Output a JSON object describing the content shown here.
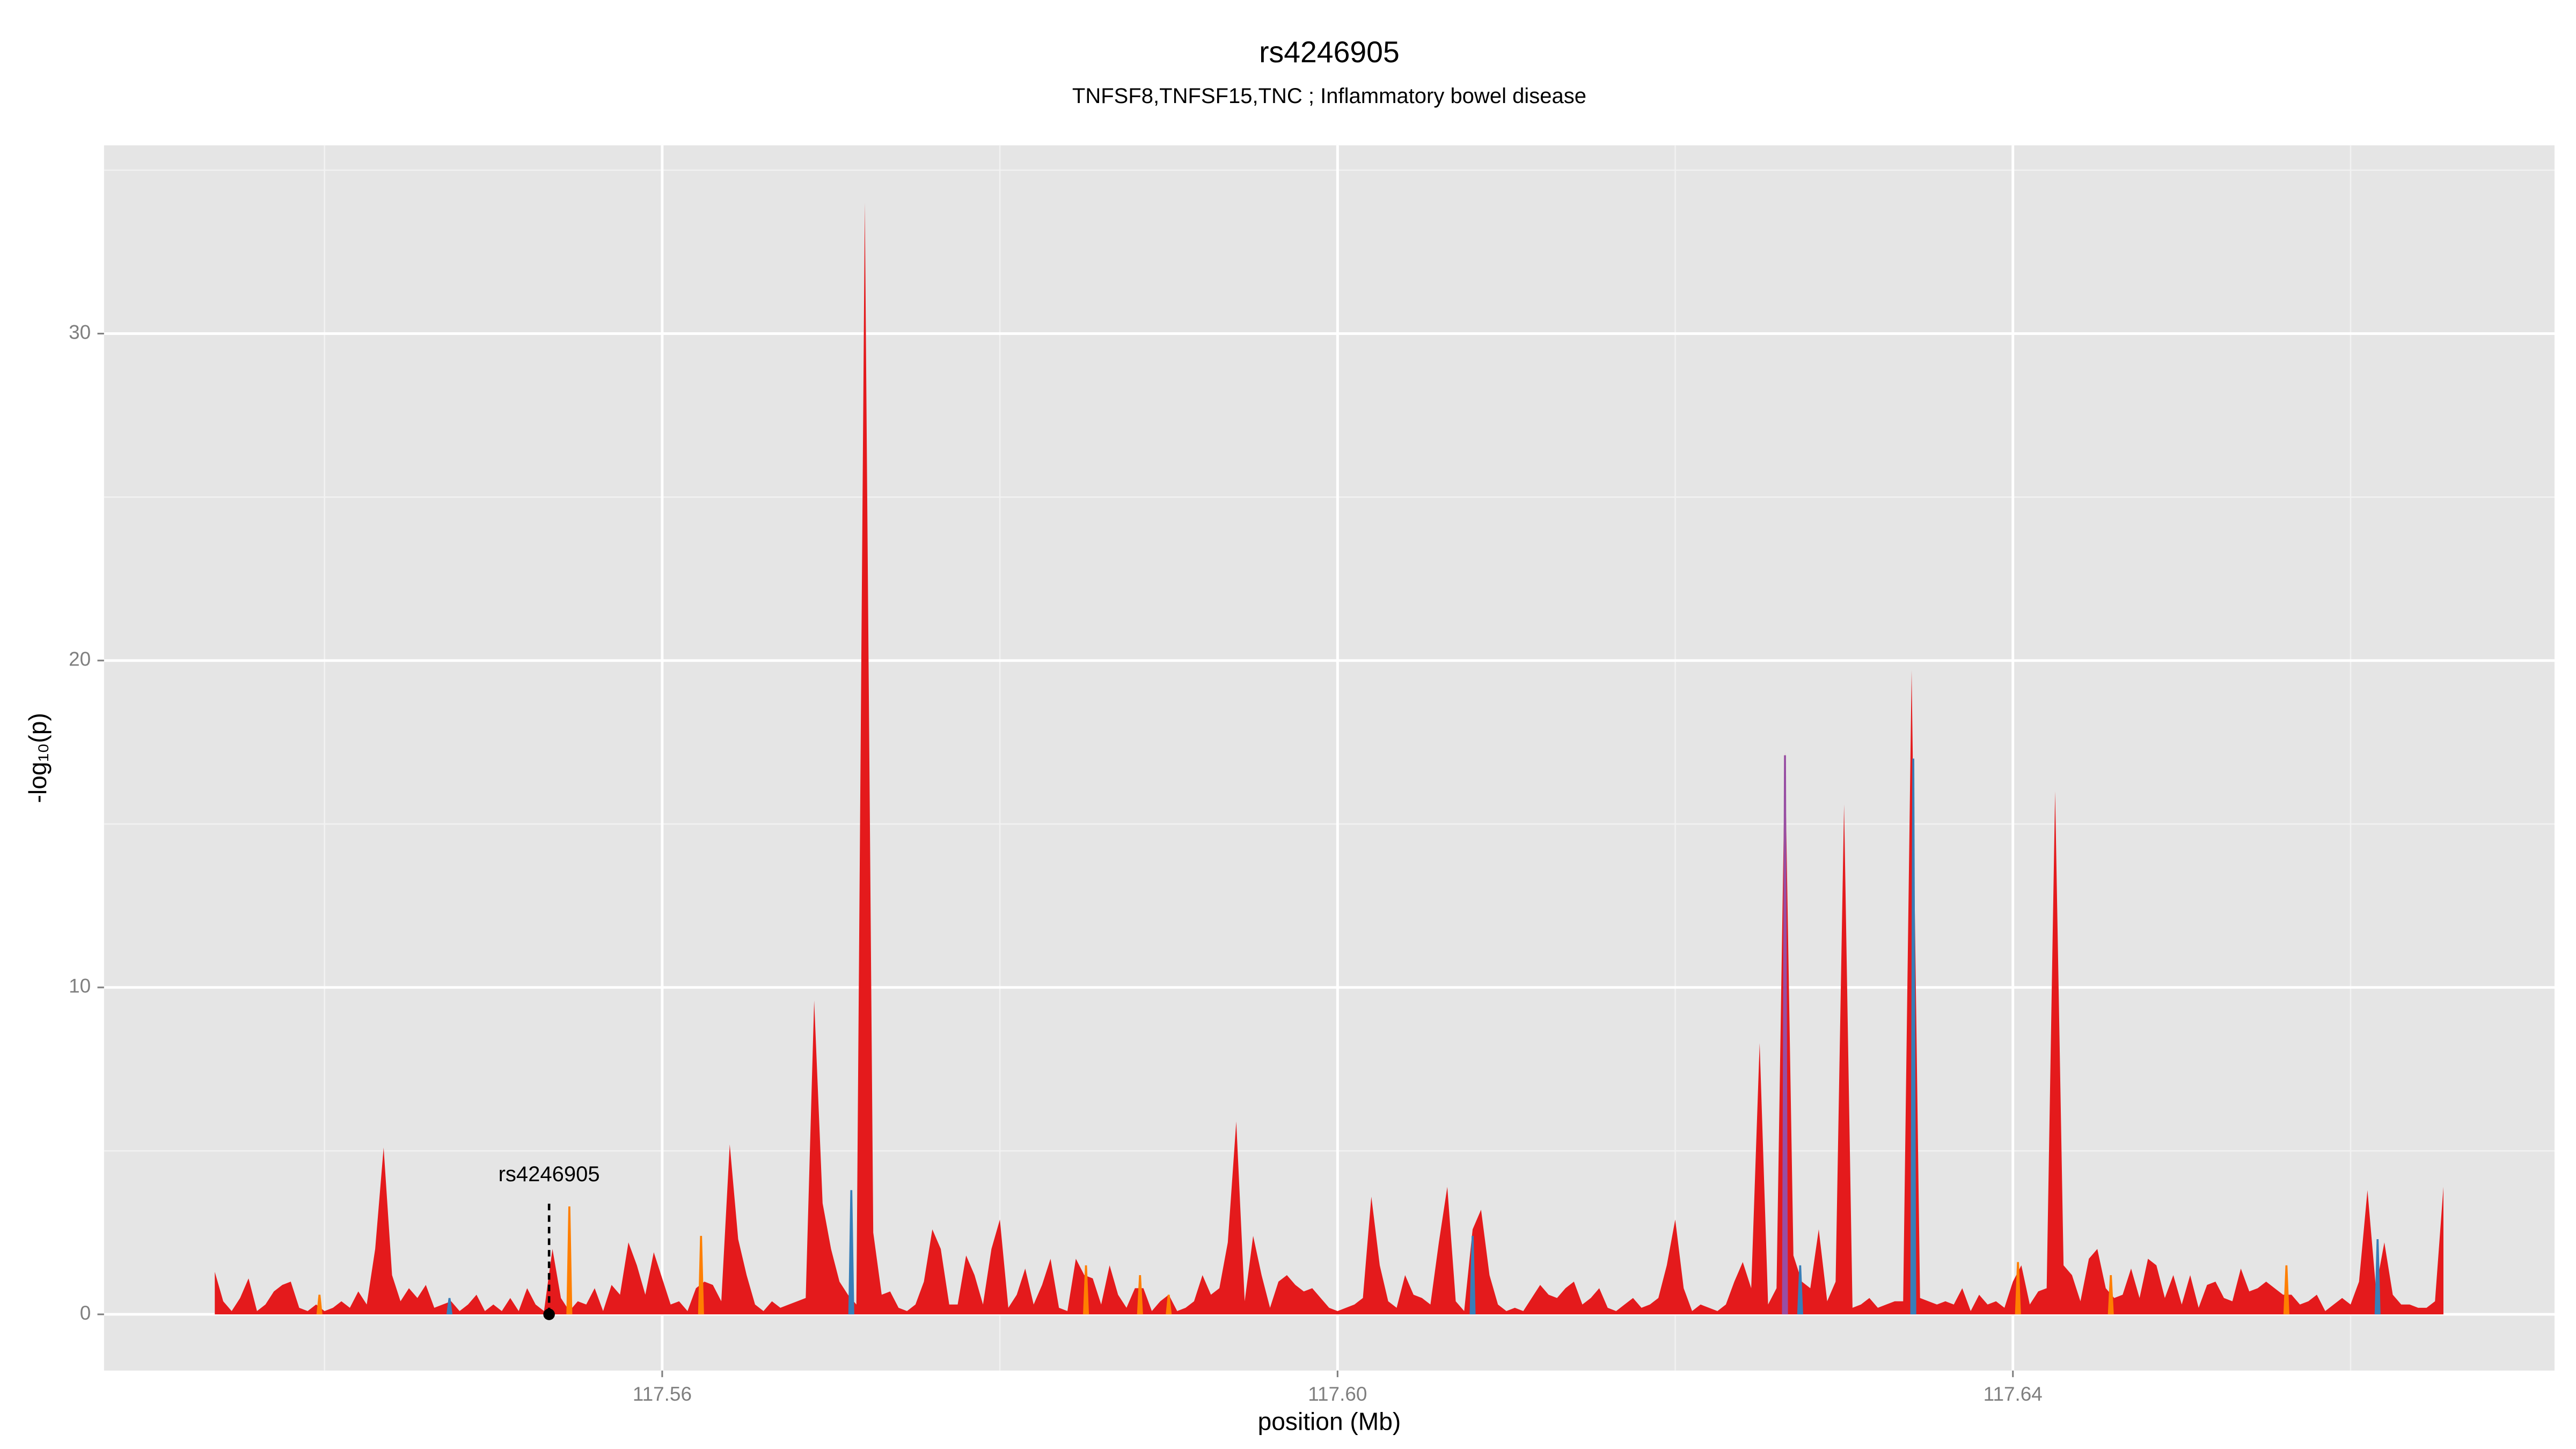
{
  "chart_data": {
    "type": "area",
    "title": "rs4246905",
    "subtitle": "TNFSF8,TNFSF15,TNC ; Inflammatory bowel disease",
    "xlabel": "position (Mb)",
    "ylabel": "-log₁₀(p)",
    "xlim": [
      117.52694,
      117.67208
    ],
    "ylim": [
      -1.72,
      35.76
    ],
    "xticks": [
      117.56,
      {
        "value": 117.6,
        "label": "117.60"
      },
      117.64
    ],
    "yticks": [
      0,
      10,
      20,
      30
    ],
    "xminor": [
      117.54,
      117.58,
      117.62,
      117.66
    ],
    "yminor": [
      5,
      15,
      25,
      35
    ],
    "grid": true,
    "series": [
      {
        "color": "#e41a1c",
        "x": [
          117.5335,
          117.534,
          117.5345,
          117.535,
          117.5355,
          117.536,
          117.5365,
          117.537,
          117.5375,
          117.538,
          117.5385,
          117.539,
          117.5395,
          117.54,
          117.5405,
          117.541,
          117.5415,
          117.542,
          117.5425,
          117.543,
          117.5435,
          117.544,
          117.5445,
          117.545,
          117.5455,
          117.546,
          117.5465,
          117.547,
          117.5475,
          117.548,
          117.5485,
          117.549,
          117.5495,
          117.55,
          117.5505,
          117.551,
          117.5515,
          117.552,
          117.5525,
          117.553,
          117.5535,
          117.554,
          117.5545,
          117.555,
          117.5555,
          117.556,
          117.5565,
          117.557,
          117.5575,
          117.558,
          117.5585,
          117.559,
          117.5595,
          117.56,
          117.5605,
          117.561,
          117.5615,
          117.562,
          117.5625,
          117.563,
          117.5635,
          117.564,
          117.5645,
          117.565,
          117.5655,
          117.566,
          117.5665,
          117.567,
          117.5675,
          117.568,
          117.5685,
          117.569,
          117.5695,
          117.57,
          117.5705,
          117.571,
          117.5715,
          117.572,
          117.5725,
          117.573,
          117.5735,
          117.574,
          117.5745,
          117.575,
          117.5755,
          117.576,
          117.5765,
          117.577,
          117.5775,
          117.578,
          117.5785,
          117.579,
          117.5795,
          117.58,
          117.5805,
          117.581,
          117.5815,
          117.582,
          117.5825,
          117.583,
          117.5835,
          117.584,
          117.5845,
          117.585,
          117.5855,
          117.586,
          117.5865,
          117.587,
          117.5875,
          117.588,
          117.5885,
          117.589,
          117.5895,
          117.59,
          117.5905,
          117.591,
          117.5915,
          117.592,
          117.5925,
          117.593,
          117.5935,
          117.594,
          117.5945,
          117.595,
          117.5955,
          117.596,
          117.5965,
          117.597,
          117.5975,
          117.598,
          117.5985,
          117.599,
          117.5995,
          117.6,
          117.6005,
          117.601,
          117.6015,
          117.602,
          117.6025,
          117.603,
          117.6035,
          117.604,
          117.6045,
          117.605,
          117.6055,
          117.606,
          117.6065,
          117.607,
          117.6075,
          117.608,
          117.6085,
          117.609,
          117.6095,
          117.61,
          117.6105,
          117.611,
          117.6115,
          117.612,
          117.6125,
          117.613,
          117.6135,
          117.614,
          117.6145,
          117.615,
          117.6155,
          117.616,
          117.6165,
          117.617,
          117.6175,
          117.618,
          117.6185,
          117.619,
          117.6195,
          117.62,
          117.6205,
          117.621,
          117.6215,
          117.622,
          117.6225,
          117.623,
          117.6235,
          117.624,
          117.6245,
          117.625,
          117.6255,
          117.626,
          117.6265,
          117.627,
          117.6275,
          117.628,
          117.6285,
          117.629,
          117.6295,
          117.63,
          117.6305,
          117.631,
          117.6315,
          117.632,
          117.6325,
          117.633,
          117.6335,
          117.634,
          117.6345,
          117.635,
          117.6355,
          117.636,
          117.6365,
          117.637,
          117.6375,
          117.638,
          117.6385,
          117.639,
          117.6395,
          117.64,
          117.6405,
          117.641,
          117.6415,
          117.642,
          117.6425,
          117.643,
          117.6435,
          117.644,
          117.6445,
          117.645,
          117.6455,
          117.646,
          117.6465,
          117.647,
          117.6475,
          117.648,
          117.6485,
          117.649,
          117.6495,
          117.65,
          117.6505,
          117.651,
          117.6515,
          117.652,
          117.6525,
          117.653,
          117.6535,
          117.654,
          117.6545,
          117.655,
          117.6555,
          117.656,
          117.6565,
          117.657,
          117.6575,
          117.658,
          117.6585,
          117.659,
          117.6595,
          117.66,
          117.6605,
          117.661,
          117.6615,
          117.662,
          117.6625,
          117.663,
          117.6635,
          117.664,
          117.6645,
          117.665,
          117.6655
        ],
        "values": [
          1.3,
          0.4,
          0.1,
          0.5,
          1.1,
          0.1,
          0.3,
          0.7,
          0.9,
          1.0,
          0.2,
          0.1,
          0.3,
          0.1,
          0.2,
          0.4,
          0.2,
          0.7,
          0.3,
          2.0,
          5.1,
          1.2,
          0.4,
          0.8,
          0.5,
          0.9,
          0.2,
          0.3,
          0.4,
          0.1,
          0.3,
          0.6,
          0.1,
          0.3,
          0.1,
          0.5,
          0.1,
          0.8,
          0.3,
          0.1,
          2.0,
          0.5,
          0.1,
          0.4,
          0.3,
          0.8,
          0.1,
          0.9,
          0.6,
          2.2,
          1.5,
          0.6,
          1.9,
          1.1,
          0.3,
          0.4,
          0.1,
          0.8,
          1.0,
          0.9,
          0.4,
          5.2,
          2.3,
          1.2,
          0.3,
          0.1,
          0.4,
          0.2,
          0.3,
          0.4,
          0.5,
          9.6,
          3.4,
          2.0,
          1.0,
          0.6,
          0.3,
          34,
          2.5,
          0.6,
          0.7,
          0.2,
          0.1,
          0.3,
          1.0,
          2.6,
          2.0,
          0.3,
          0.3,
          1.8,
          1.2,
          0.3,
          2.0,
          2.9,
          0.2,
          0.6,
          1.4,
          0.3,
          0.9,
          1.7,
          0.2,
          0.1,
          1.7,
          1.2,
          1.1,
          0.3,
          1.5,
          0.6,
          0.2,
          0.8,
          0.8,
          0.1,
          0.4,
          0.6,
          0.1,
          0.2,
          0.4,
          1.2,
          0.6,
          0.8,
          2.2,
          5.9,
          0.4,
          2.4,
          1.2,
          0.2,
          1.0,
          1.2,
          0.9,
          0.7,
          0.8,
          0.5,
          0.2,
          0.1,
          0.2,
          0.3,
          0.5,
          3.6,
          1.5,
          0.4,
          0.2,
          1.2,
          0.6,
          0.5,
          0.3,
          2.2,
          3.9,
          0.4,
          0.1,
          2.6,
          3.2,
          1.2,
          0.3,
          0.1,
          0.2,
          0.1,
          0.5,
          0.9,
          0.6,
          0.5,
          0.8,
          1.0,
          0.3,
          0.5,
          0.8,
          0.2,
          0.1,
          0.3,
          0.5,
          0.2,
          0.3,
          0.5,
          1.5,
          2.9,
          0.8,
          0.1,
          0.3,
          0.2,
          0.1,
          0.3,
          1.0,
          1.6,
          0.8,
          8.3,
          0.3,
          0.8,
          17.2,
          1.8,
          1.0,
          0.8,
          2.6,
          0.4,
          1.0,
          15.6,
          0.2,
          0.3,
          0.5,
          0.2,
          0.3,
          0.4,
          0.4,
          19.7,
          0.5,
          0.4,
          0.3,
          0.4,
          0.3,
          0.8,
          0.1,
          0.6,
          0.3,
          0.4,
          0.2,
          1.0,
          1.5,
          0.3,
          0.7,
          0.8,
          16.0,
          1.5,
          1.2,
          0.4,
          1.7,
          2.0,
          0.8,
          0.5,
          0.6,
          1.4,
          0.5,
          1.7,
          1.5,
          0.5,
          1.2,
          0.3,
          1.2,
          0.2,
          0.9,
          1.0,
          0.5,
          0.4,
          1.4,
          0.7,
          0.8,
          1.0,
          0.8,
          0.6,
          0.6,
          0.3,
          0.4,
          0.6,
          0.1,
          0.3,
          0.5,
          0.3,
          1.0,
          3.8,
          0.8,
          2.2,
          0.6,
          0.3,
          0.3,
          0.2,
          0.2,
          0.4,
          3.9
        ]
      }
    ],
    "spikes": [
      {
        "color": "#ff7f00",
        "x": [
          117.5397,
          117.5545,
          117.5623,
          117.5851,
          117.5883,
          117.59,
          117.6403,
          117.6458,
          117.6562
        ],
        "values": [
          0.6,
          3.3,
          2.4,
          1.5,
          1.2,
          0.6,
          1.6,
          1.2,
          1.5
        ]
      },
      {
        "color": "#377eb8",
        "x": [
          117.5474,
          117.5712,
          117.608,
          117.6274,
          117.6341,
          117.6616
        ],
        "values": [
          0.5,
          3.8,
          2.4,
          1.5,
          17,
          2.3
        ]
      },
      {
        "color": "#984ea3",
        "x": [
          117.6265
        ],
        "values": [
          17.1
        ]
      }
    ],
    "highlight": {
      "label": "rs4246905",
      "x": 117.5533,
      "y": 0
    }
  }
}
